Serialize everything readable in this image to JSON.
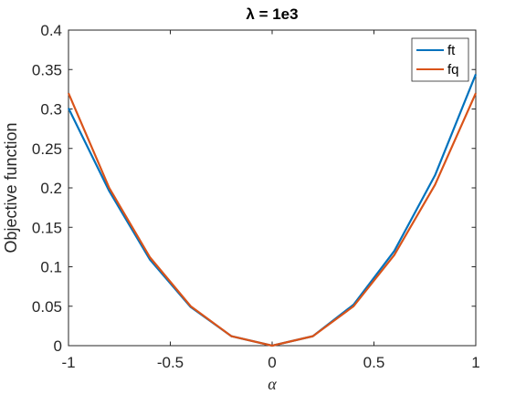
{
  "chart_data": {
    "type": "line",
    "title": "λ = 1e3",
    "xlabel": "α",
    "ylabel": "Objective function",
    "xlim": [
      -1,
      1
    ],
    "ylim": [
      0,
      0.4
    ],
    "xticks": [
      -1,
      -0.5,
      0,
      0.5,
      1
    ],
    "xtick_labels": [
      "-1",
      "-0.5",
      "0",
      "0.5",
      "1"
    ],
    "yticks": [
      0,
      0.05,
      0.1,
      0.15,
      0.2,
      0.25,
      0.3,
      0.35,
      0.4
    ],
    "ytick_labels": [
      "0",
      "0.05",
      "0.1",
      "0.15",
      "0.2",
      "0.25",
      "0.3",
      "0.35",
      "0.4"
    ],
    "grid": false,
    "legend_position": "top-right",
    "x": [
      -1,
      -0.8,
      -0.6,
      -0.4,
      -0.2,
      0,
      0.2,
      0.4,
      0.6,
      0.8,
      1
    ],
    "series": [
      {
        "name": "ft",
        "color": "#0072BD",
        "values": [
          0.301,
          0.196,
          0.109,
          0.049,
          0.012,
          0.0,
          0.012,
          0.052,
          0.12,
          0.216,
          0.344
        ]
      },
      {
        "name": "fq",
        "color": "#D95319",
        "values": [
          0.32,
          0.2,
          0.112,
          0.05,
          0.012,
          0.0,
          0.012,
          0.05,
          0.115,
          0.204,
          0.32
        ]
      }
    ]
  }
}
